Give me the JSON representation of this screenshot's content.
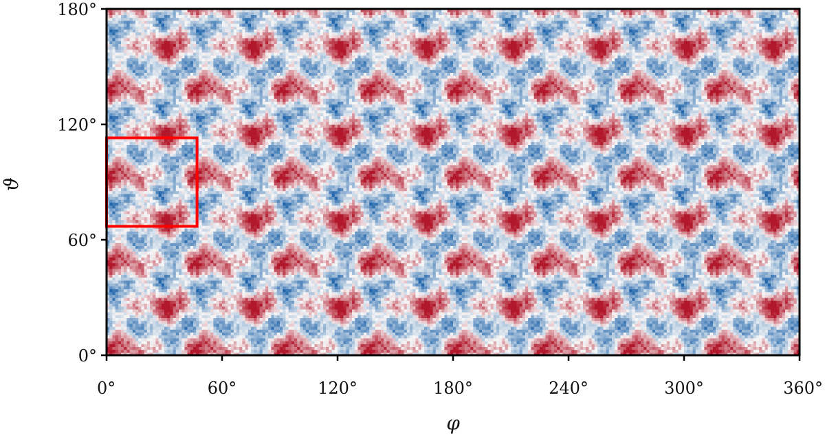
{
  "chart_data": {
    "type": "heatmap",
    "title": "",
    "xlabel": "φ",
    "ylabel": "ϑ",
    "xlim": [
      0,
      360
    ],
    "ylim": [
      0,
      180
    ],
    "x_ticks": [
      0,
      60,
      120,
      180,
      240,
      300,
      360
    ],
    "y_ticks": [
      0,
      60,
      120,
      180
    ],
    "x_tick_labels": [
      "0°",
      "60°",
      "120°",
      "180°",
      "240°",
      "300°",
      "360°"
    ],
    "y_tick_labels": [
      "0°",
      "60°",
      "120°",
      "180°"
    ],
    "colormap": "RdBu_r (diverging, blue = negative, red = positive)",
    "pattern": "periodic tiling of the fundamental cell",
    "period_phi": 45,
    "period_theta": 45,
    "highlight_box": {
      "phi": [
        0,
        47
      ],
      "theta": [
        67,
        113
      ],
      "color": "#ff0000"
    },
    "grid": false,
    "colors": {
      "negative": "#2166ac",
      "neutral": "#f7f7f7",
      "positive": "#b2182b",
      "box": "#ff0000",
      "axes": "#000000"
    }
  }
}
